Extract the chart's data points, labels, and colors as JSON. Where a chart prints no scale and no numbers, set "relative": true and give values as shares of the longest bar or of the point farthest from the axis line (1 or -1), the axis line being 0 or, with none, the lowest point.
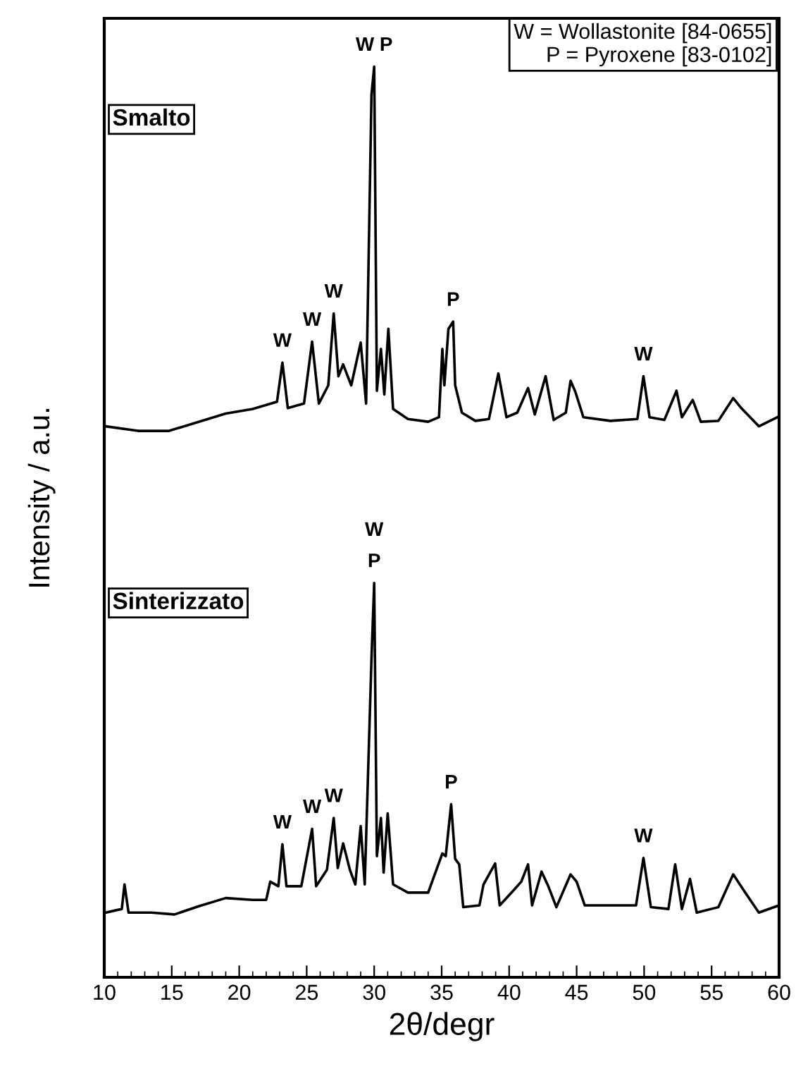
{
  "chart_data": {
    "type": "line",
    "relative": true,
    "xlabel": "2θ/degr",
    "ylabel": "Intensity / a.u.",
    "xlim": [
      10,
      60
    ],
    "xticks": [
      10,
      15,
      20,
      25,
      30,
      35,
      40,
      45,
      50,
      55,
      60
    ],
    "tick_labels": "x",
    "grid": false,
    "legend": false,
    "marker": "none",
    "line_style": "solid",
    "series": [
      {
        "name": "Smalto",
        "color": "#000000",
        "x": [
          10.1,
          12.5,
          14.8,
          17,
          19,
          21,
          22.8,
          23.2,
          23.6,
          24.8,
          25.4,
          25.9,
          26.6,
          27.0,
          27.35,
          27.7,
          28.3,
          29.0,
          29.4,
          29.8,
          30.0,
          30.2,
          30.5,
          30.75,
          31.05,
          31.4,
          32.5,
          34,
          34.8,
          35.05,
          35.2,
          35.5,
          35.85,
          36.0,
          36.5,
          37.5,
          38.5,
          39.2,
          39.8,
          40.6,
          41.4,
          41.9,
          42.7,
          43.3,
          44.2,
          44.55,
          44.9,
          45.5,
          47.5,
          49.5,
          49.95,
          50.4,
          51.5,
          52.4,
          52.8,
          53.6,
          54.2,
          55.5,
          56.6,
          57.2,
          58.5,
          60
        ],
        "values": [
          0.605,
          0.6,
          0.6,
          0.61,
          0.619,
          0.624,
          0.632,
          0.675,
          0.625,
          0.63,
          0.698,
          0.63,
          0.65,
          0.729,
          0.66,
          0.673,
          0.65,
          0.697,
          0.63,
          0.969,
          1.0,
          0.644,
          0.69,
          0.64,
          0.712,
          0.624,
          0.613,
          0.61,
          0.615,
          0.69,
          0.65,
          0.712,
          0.72,
          0.65,
          0.62,
          0.611,
          0.613,
          0.663,
          0.615,
          0.62,
          0.647,
          0.618,
          0.66,
          0.612,
          0.62,
          0.655,
          0.643,
          0.615,
          0.611,
          0.613,
          0.66,
          0.615,
          0.612,
          0.644,
          0.615,
          0.634,
          0.61,
          0.611,
          0.636,
          0.625,
          0.605,
          0.616
        ]
      },
      {
        "name": "Sinterizzato",
        "color": "#000000",
        "x": [
          10.1,
          11.3,
          11.5,
          11.8,
          13.5,
          15.2,
          17,
          19,
          21,
          22.0,
          22.3,
          22.9,
          23.2,
          23.5,
          24.6,
          25.4,
          25.7,
          26.5,
          27.0,
          27.3,
          27.7,
          28.2,
          28.6,
          29.0,
          29.3,
          29.8,
          30.0,
          30.2,
          30.5,
          30.7,
          31.0,
          31.4,
          32.5,
          34,
          35.05,
          35.3,
          35.7,
          36.0,
          36.3,
          36.6,
          37.8,
          38.1,
          38.96,
          39.3,
          40.3,
          40.9,
          41.4,
          41.7,
          42.4,
          42.9,
          43.5,
          44.55,
          45.0,
          45.6,
          47.5,
          49.4,
          49.95,
          50.5,
          51.8,
          52.3,
          52.8,
          53.4,
          53.9,
          55.5,
          56.6,
          57.4,
          58.5,
          60
        ],
        "values": [
          0.071,
          0.075,
          0.102,
          0.071,
          0.071,
          0.069,
          0.078,
          0.087,
          0.085,
          0.085,
          0.105,
          0.1,
          0.146,
          0.1,
          0.1,
          0.163,
          0.1,
          0.118,
          0.175,
          0.12,
          0.147,
          0.118,
          0.102,
          0.166,
          0.102,
          0.35,
          0.433,
          0.133,
          0.175,
          0.115,
          0.18,
          0.102,
          0.093,
          0.093,
          0.136,
          0.133,
          0.19,
          0.13,
          0.124,
          0.077,
          0.079,
          0.102,
          0.125,
          0.079,
          0.095,
          0.105,
          0.124,
          0.079,
          0.116,
          0.1,
          0.077,
          0.113,
          0.105,
          0.079,
          0.079,
          0.079,
          0.131,
          0.077,
          0.075,
          0.124,
          0.075,
          0.108,
          0.071,
          0.077,
          0.113,
          0.095,
          0.071,
          0.079
        ]
      }
    ],
    "annotations": [
      {
        "text": "W",
        "x": 23.2,
        "y": 0.675
      },
      {
        "text": "W",
        "x": 25.4,
        "y": 0.698
      },
      {
        "text": "W",
        "x": 27.0,
        "y": 0.729
      },
      {
        "text": "W P",
        "x": 30.0,
        "y": 1.0
      },
      {
        "text": "P",
        "x": 35.85,
        "y": 0.72
      },
      {
        "text": "W",
        "x": 49.95,
        "y": 0.66
      },
      {
        "text": "W",
        "x": 23.2,
        "y": 0.146
      },
      {
        "text": "W",
        "x": 25.4,
        "y": 0.163
      },
      {
        "text": "W",
        "x": 27.0,
        "y": 0.175
      },
      {
        "text": "W",
        "x": 30.0,
        "y": 0.433
      },
      {
        "text": "P",
        "x": 30.0,
        "y": 0.433
      },
      {
        "text": "P",
        "x": 35.7,
        "y": 0.19
      },
      {
        "text": "W",
        "x": 49.95,
        "y": 0.131
      },
      "W = Wollastonite [84-0655]\nP = Pyroxene [83-0102]"
    ]
  }
}
